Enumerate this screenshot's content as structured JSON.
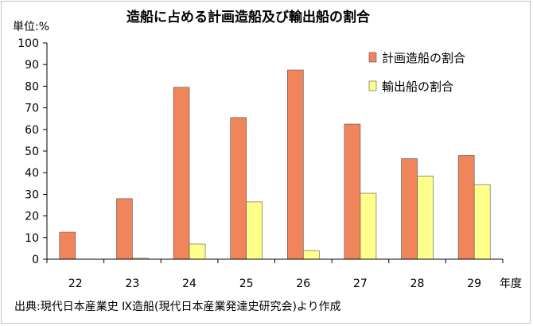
{
  "chart_data": {
    "type": "bar",
    "title": "造船に占める計画造船及び輸出船の割合",
    "ylabel": "単位:%",
    "xlabel": "年度",
    "categories": [
      "22",
      "23",
      "24",
      "25",
      "26",
      "27",
      "28",
      "29"
    ],
    "ylim": [
      0,
      100
    ],
    "yticks": [
      "0",
      "10",
      "20",
      "30",
      "40",
      "50",
      "60",
      "70",
      "80",
      "90",
      "100"
    ],
    "legend_position": "top-right",
    "series": [
      {
        "name": "計画造船の割合",
        "color": "#f0845a",
        "values": [
          12.5,
          28,
          79.5,
          65.5,
          87.5,
          62.5,
          46.5,
          48
        ]
      },
      {
        "name": "輸出船の割合",
        "color": "#ffff8c",
        "values": [
          0,
          0.5,
          7,
          26.5,
          4,
          30.5,
          38.5,
          34.5
        ]
      }
    ],
    "source": "出典:現代日本産業史 Ⅸ造船(現代日本産業発達史研究会)より作成"
  }
}
